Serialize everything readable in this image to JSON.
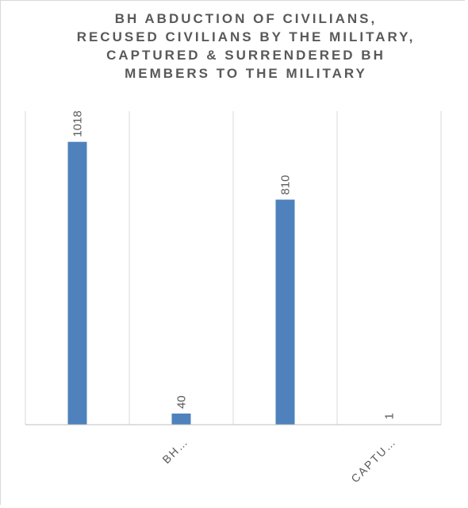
{
  "chart_data": {
    "type": "bar",
    "title": "BH ABDUCTION OF CIVILIANS,\nRECUSED CIVILIANS BY THE MILITARY,\nCAPTURED  & SURRENDERED BH\nMEMBERS TO THE MILITARY",
    "categories": [
      "",
      "BH…",
      "",
      "CAPTU…"
    ],
    "values": [
      1018,
      40,
      810,
      1
    ],
    "data_labels": [
      "1018",
      "40",
      "810",
      "1"
    ],
    "xlabel": "",
    "ylabel": "",
    "ylim": [
      0,
      1200
    ],
    "grid": "vertical category dividers",
    "legend": "none",
    "bar_color": "#4f81bd",
    "label_color": "#595959",
    "gridline_color": "#d9d9d9",
    "axis_color": "#bfbfbf"
  }
}
